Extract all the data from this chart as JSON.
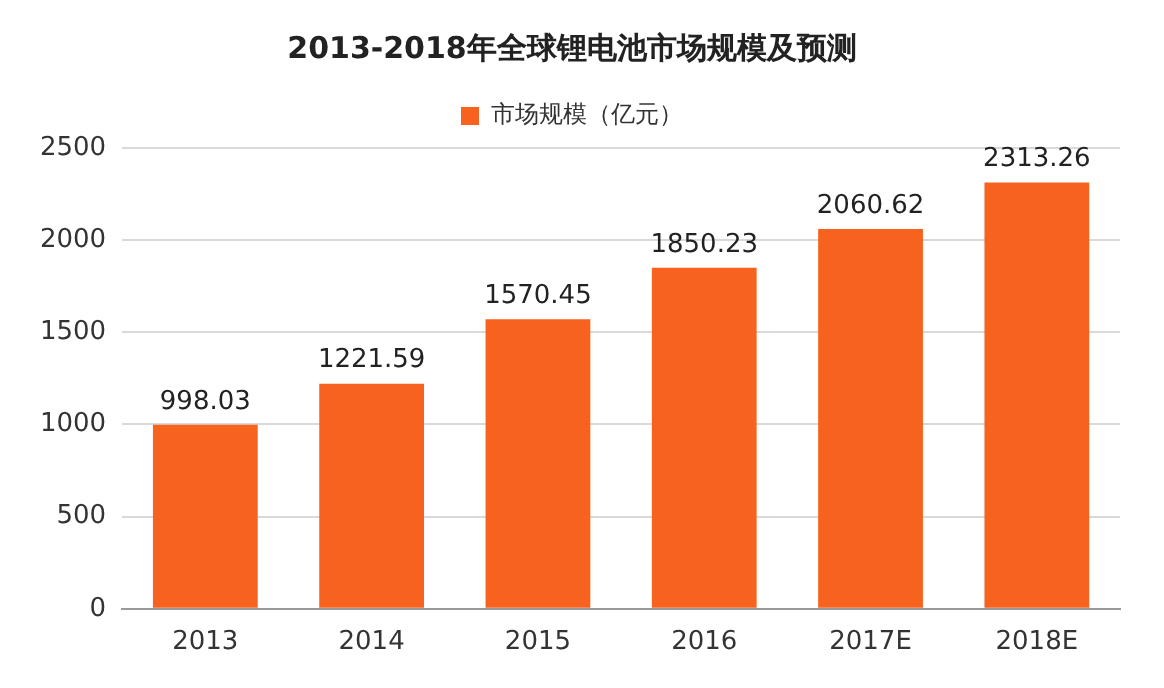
{
  "chart_data": {
    "type": "bar",
    "title": "2013-2018年全球锂电池市场规模及预测",
    "categories": [
      "2013",
      "2014",
      "2015",
      "2016",
      "2017E",
      "2018E"
    ],
    "series": [
      {
        "name": "市场规模（亿元）",
        "color": "#f7621e",
        "values": [
          998.03,
          1221.59,
          1570.45,
          1850.23,
          2060.62,
          2313.26
        ]
      }
    ],
    "ylim": [
      0,
      2500
    ],
    "yticks": [
      0,
      500,
      1000,
      1500,
      2000,
      2500
    ],
    "grid": "y",
    "legend": "top",
    "data_labels": true
  }
}
